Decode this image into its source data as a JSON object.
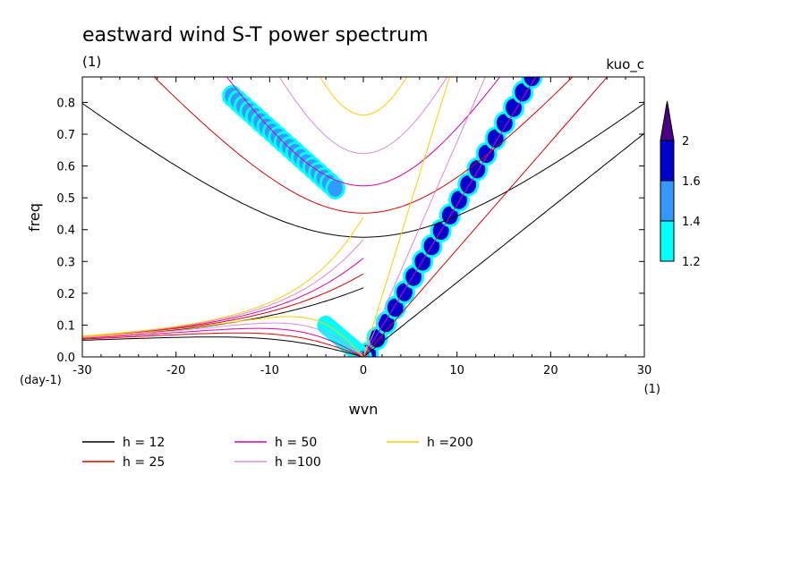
{
  "chart_data": {
    "type": "heatmap",
    "title": "eastward wind S-T power spectrum",
    "subtitle": "(1)",
    "model_label": "kuo_c",
    "xlabel": "wvn",
    "ylabel": "freq",
    "x_unit": "(1)",
    "y_unit": "(day-1)",
    "xlim": [
      -30,
      30
    ],
    "ylim": [
      0,
      0.88
    ],
    "x_ticks": [
      -30,
      -20,
      -10,
      0,
      10,
      20,
      30
    ],
    "x_tick_labels": [
      "-30",
      "-20",
      "-10",
      "0",
      "10",
      "20",
      "30"
    ],
    "y_ticks": [
      0.0,
      0.1,
      0.2,
      0.3,
      0.4,
      0.5,
      0.6,
      0.7,
      0.8
    ],
    "y_tick_labels": [
      "0.0",
      "0.1",
      "0.2",
      "0.3",
      "0.4",
      "0.5",
      "0.6",
      "0.7",
      "0.8"
    ],
    "colorbar": {
      "levels": [
        1.2,
        1.4,
        1.6,
        2
      ],
      "labels": [
        "1.2",
        "1.4",
        "1.6",
        "2"
      ],
      "colors": [
        "#00ffff",
        "#3399ff",
        "#0000cc",
        "#4b0082"
      ]
    },
    "dispersion_curves": [
      {
        "label": "h = 12",
        "h": 12,
        "color": "#000000"
      },
      {
        "label": "h = 25",
        "h": 25,
        "color": "#e00000"
      },
      {
        "label": "h = 50",
        "h": 50,
        "color": "#dd00aa"
      },
      {
        "label": "h =100",
        "h": 100,
        "color": "#dd88dd"
      },
      {
        "label": "h =200",
        "h": 200,
        "color": "#ffcc00"
      }
    ],
    "power_regions": [
      {
        "name": "kelvin-wave-ridge",
        "level": 1.6,
        "from": [
          0.5,
          0.01
        ],
        "to": [
          18,
          0.88
        ],
        "width": 0.035
      },
      {
        "name": "er-wave-band",
        "level": 1.4,
        "from": [
          -14,
          0.82
        ],
        "to": [
          -3,
          0.53
        ],
        "width": 0.03
      },
      {
        "name": "mrg-low-freq",
        "level": 1.4,
        "from": [
          -4,
          0.1
        ],
        "to": [
          0,
          0.0
        ],
        "width": 0.02
      }
    ]
  }
}
